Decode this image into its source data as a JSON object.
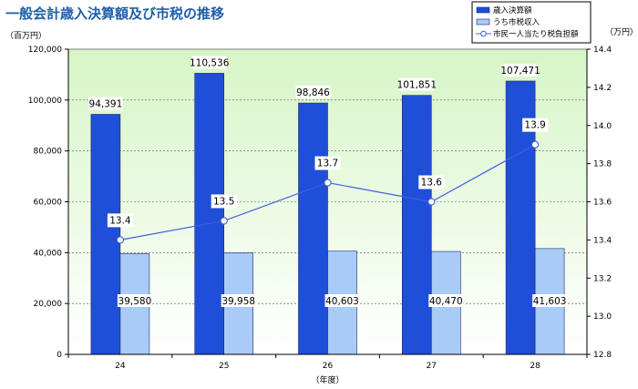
{
  "page_title": "一般会計歳入決算額及び市税の推移",
  "chart_data": {
    "type": "bar",
    "categories": [
      "24",
      "25",
      "26",
      "27",
      "28"
    ],
    "series": [
      {
        "name": "歳入決算額",
        "kind": "bar",
        "axis": "left",
        "values": [
          94391,
          110536,
          98846,
          101851,
          107471
        ],
        "labels": [
          "94,391",
          "110,536",
          "98,846",
          "101,851",
          "107,471"
        ],
        "color": "#1f4fd8"
      },
      {
        "name": "うち市税収入",
        "kind": "bar",
        "axis": "left",
        "values": [
          39580,
          39958,
          40603,
          40470,
          41603
        ],
        "labels": [
          "39,580",
          "39,958",
          "40,603",
          "40,470",
          "41,603"
        ],
        "color": "#a9cbf7"
      },
      {
        "name": "市民一人当たり税負担額",
        "kind": "line",
        "axis": "right",
        "values": [
          13.4,
          13.5,
          13.7,
          13.6,
          13.9
        ],
        "labels": [
          "13.4",
          "13.5",
          "13.7",
          "13.6",
          "13.9"
        ],
        "color": "#3f5fe0"
      }
    ],
    "y_left": {
      "unit": "（百万円）",
      "ylim": [
        0,
        120000
      ],
      "ticks": [
        "0",
        "20,000",
        "40,000",
        "60,000",
        "80,000",
        "100,000",
        "120,000"
      ]
    },
    "y_right": {
      "unit": "（万円）",
      "ylim": [
        12.8,
        14.4
      ],
      "ticks": [
        "12.8",
        "13.0",
        "13.2",
        "13.4",
        "13.6",
        "13.8",
        "14.0",
        "14.2",
        "14.4"
      ]
    },
    "xlabel": "（年度）",
    "grid": true,
    "legend": "top-right",
    "plot_background": [
      "#d6f5c6",
      "#ffffff"
    ]
  }
}
